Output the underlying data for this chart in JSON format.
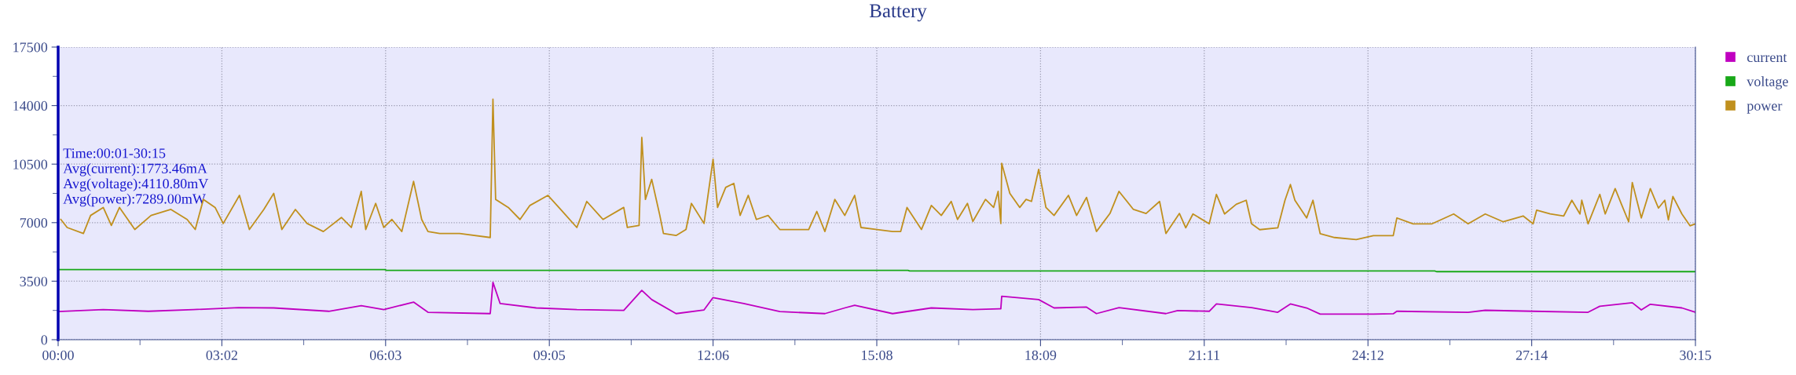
{
  "chart_data": {
    "type": "line",
    "title": "Battery",
    "xlim": [
      0,
      1815
    ],
    "ylim": [
      0,
      17500
    ],
    "xticks": [
      {
        "value": 0,
        "label": "00:00"
      },
      {
        "value": 181.5,
        "label": "03:02"
      },
      {
        "value": 363,
        "label": "06:03"
      },
      {
        "value": 544.5,
        "label": "09:05"
      },
      {
        "value": 726,
        "label": "12:06"
      },
      {
        "value": 907.5,
        "label": "15:08"
      },
      {
        "value": 1089,
        "label": "18:09"
      },
      {
        "value": 1270.5,
        "label": "21:11"
      },
      {
        "value": 1452,
        "label": "24:12"
      },
      {
        "value": 1633.5,
        "label": "27:14"
      },
      {
        "value": 1815,
        "label": "30:15"
      }
    ],
    "yticks": [
      0,
      3500,
      7000,
      10500,
      14000,
      17500
    ],
    "grid": true,
    "legend": "top right",
    "marker": "none",
    "line_style": "solid",
    "annotations": [
      "Time:00:01-30:15",
      "Avg(current):1773.46mA",
      "Avg(voltage):4110.80mV",
      "Avg(power):7289.00mW"
    ],
    "series": [
      {
        "name": "current",
        "color": "#c000c0",
        "x": [
          0,
          50,
          100,
          150,
          200,
          239,
          300,
          336,
          361,
          394,
          410,
          479,
          482,
          490,
          530,
          575,
          627,
          647,
          658,
          685,
          716,
          726,
          760,
          800,
          850,
          872,
          883,
          925,
          968,
          1014,
          1045,
          1046,
          1087,
          1104,
          1140,
          1151,
          1176,
          1228,
          1241,
          1276,
          1284,
          1323,
          1352,
          1366,
          1384,
          1399,
          1458,
          1480,
          1484,
          1563,
          1582,
          1635,
          1696,
          1709,
          1745,
          1755,
          1765,
          1800,
          1815
        ],
        "values": [
          1680,
          1800,
          1700,
          1800,
          1920,
          1900,
          1700,
          2040,
          1800,
          2250,
          1640,
          1560,
          3430,
          2160,
          1900,
          1800,
          1750,
          2950,
          2400,
          1560,
          1780,
          2520,
          2160,
          1680,
          1560,
          1900,
          2060,
          1560,
          1900,
          1800,
          1850,
          2600,
          2400,
          1900,
          1950,
          1560,
          1920,
          1560,
          1740,
          1700,
          2140,
          1920,
          1640,
          2140,
          1900,
          1530,
          1530,
          1550,
          1700,
          1640,
          1760,
          1700,
          1640,
          2000,
          2210,
          1780,
          2120,
          1900,
          1640
        ]
      },
      {
        "name": "voltage",
        "color": "#18a818",
        "x": [
          0,
          362,
          364,
          942,
          944,
          1526,
          1528,
          1815
        ],
        "values": [
          4190,
          4190,
          4150,
          4150,
          4110,
          4110,
          4070,
          4070
        ]
      },
      {
        "name": "power",
        "color": "#c0901e",
        "x": [
          3,
          10,
          28,
          36,
          50,
          59,
          68,
          85,
          103,
          125,
          143,
          152,
          161,
          174,
          183,
          201,
          212,
          228,
          239,
          248,
          263,
          276,
          294,
          314,
          325,
          336,
          341,
          352,
          361,
          370,
          381,
          394,
          403,
          410,
          423,
          445,
          479,
          482,
          485,
          499,
          512,
          523,
          543,
          557,
          575,
          586,
          604,
          627,
          631,
          644,
          647,
          651,
          658,
          667,
          671,
          685,
          696,
          702,
          716,
          726,
          731,
          740,
          749,
          756,
          765,
          774,
          787,
          800,
          832,
          841,
          850,
          861,
          872,
          883,
          890,
          908,
          925,
          934,
          941,
          957,
          968,
          979,
          990,
          997,
          1008,
          1014,
          1028,
          1037,
          1042,
          1045,
          1046,
          1055,
          1066,
          1073,
          1079,
          1087,
          1095,
          1104,
          1120,
          1129,
          1140,
          1151,
          1166,
          1176,
          1192,
          1206,
          1221,
          1228,
          1243,
          1250,
          1258,
          1276,
          1284,
          1293,
          1306,
          1317,
          1323,
          1332,
          1352,
          1360,
          1366,
          1371,
          1384,
          1391,
          1399,
          1415,
          1439,
          1458,
          1480,
          1484,
          1502,
          1523,
          1547,
          1563,
          1582,
          1602,
          1624,
          1635,
          1639,
          1654,
          1669,
          1678,
          1687,
          1689,
          1696,
          1709,
          1715,
          1726,
          1733,
          1741,
          1745,
          1755,
          1765,
          1774,
          1781,
          1785,
          1790,
          1800,
          1809,
          1815
        ],
        "values": [
          7190,
          6710,
          6350,
          7430,
          7910,
          6830,
          7910,
          6590,
          7430,
          7790,
          7190,
          6590,
          8390,
          7910,
          6950,
          8630,
          6590,
          7790,
          8750,
          6590,
          7790,
          6950,
          6470,
          7310,
          6710,
          8870,
          6590,
          8150,
          6710,
          7190,
          6470,
          9470,
          7190,
          6470,
          6350,
          6350,
          6110,
          14380,
          8390,
          7910,
          7190,
          8030,
          8630,
          7790,
          6710,
          8270,
          7190,
          7910,
          6710,
          6830,
          12100,
          8390,
          9590,
          7430,
          6350,
          6230,
          6590,
          8150,
          6950,
          10790,
          7910,
          9110,
          9350,
          7430,
          8630,
          7190,
          7430,
          6590,
          6590,
          7670,
          6470,
          8390,
          7430,
          8630,
          6710,
          6590,
          6470,
          6470,
          7910,
          6590,
          8030,
          7430,
          8270,
          7190,
          8150,
          7070,
          8390,
          7910,
          8870,
          6950,
          10550,
          8750,
          7910,
          8390,
          8270,
          10190,
          7910,
          7430,
          8630,
          7430,
          8510,
          6470,
          7550,
          8870,
          7790,
          7550,
          8270,
          6350,
          7550,
          6690,
          7520,
          6930,
          8690,
          7520,
          8100,
          8340,
          6930,
          6580,
          6690,
          8340,
          9280,
          8340,
          7280,
          8340,
          6340,
          6110,
          5990,
          6220,
          6220,
          7280,
          6930,
          6930,
          7520,
          6930,
          7520,
          7050,
          7400,
          6930,
          7750,
          7520,
          7400,
          8340,
          7520,
          8340,
          6930,
          8690,
          7520,
          9040,
          8100,
          7050,
          9400,
          7280,
          9040,
          7870,
          8340,
          7160,
          8570,
          7520,
          6810,
          6930
        ]
      }
    ]
  }
}
